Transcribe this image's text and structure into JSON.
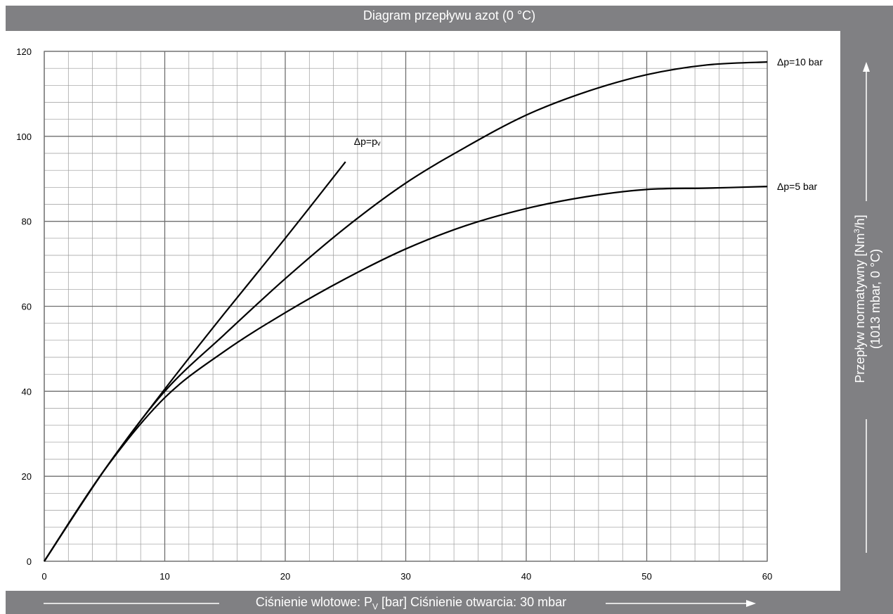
{
  "chart_data": {
    "type": "line",
    "title": "Diagram przepływu azot (0 °C)",
    "xlabel": {
      "prefix": "Ciśnienie wlotowe: P",
      "sub": "V",
      "suffix": " [bar] Ciśnienie otwarcia: 30 mbar"
    },
    "ylabel": {
      "line1_prefix": "Przepływ normatywny [Nm",
      "line1_sup": "3",
      "line1_suffix": "/h]",
      "line2": "(1013 mbar, 0 °C)"
    },
    "xlim": [
      0,
      60
    ],
    "ylim": [
      0,
      120
    ],
    "x_ticks": [
      0,
      10,
      20,
      30,
      40,
      50,
      60
    ],
    "y_ticks": [
      0,
      20,
      40,
      60,
      80,
      100,
      120
    ],
    "grid": true,
    "series": [
      {
        "name": "Δp=pᵥ",
        "x": [
          0,
          5,
          10,
          15,
          20,
          25
        ],
        "y": [
          0,
          21.5,
          40.5,
          58.5,
          76,
          94
        ]
      },
      {
        "name": "Δp=10 bar",
        "x": [
          0,
          5,
          10,
          15,
          20,
          25,
          30,
          35,
          40,
          45,
          50,
          55,
          60
        ],
        "y": [
          0,
          21.5,
          40,
          53.5,
          66.5,
          78.5,
          89,
          97.5,
          105,
          110.5,
          114.5,
          116.8,
          117.5
        ]
      },
      {
        "name": "Δp=5 bar",
        "x": [
          0,
          5,
          10,
          15,
          20,
          25,
          30,
          35,
          40,
          45,
          50,
          55,
          60
        ],
        "y": [
          0,
          21.5,
          38.5,
          49.5,
          58.5,
          66.5,
          73.5,
          79,
          83,
          85.8,
          87.5,
          87.8,
          88.2
        ]
      }
    ]
  }
}
